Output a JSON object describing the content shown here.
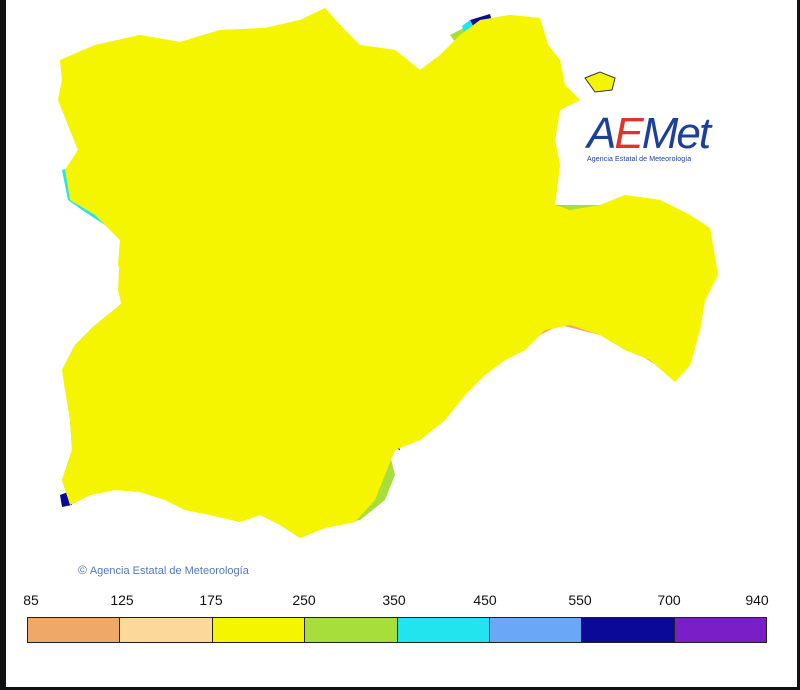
{
  "map": {
    "logo": {
      "name_part_a": "A",
      "name_part_b": "E",
      "name_part_c": "Met",
      "subtitle": "Agencia Estatal de Meteorología"
    },
    "copyright": {
      "symbol": "©",
      "text": "Agencia Estatal de Meteorología"
    },
    "colors": {
      "c85_125": "#f0a868",
      "c125_175": "#fad99a",
      "c175_250": "#f5f500",
      "c250_350": "#a8de3c",
      "c350_450": "#22e4ee",
      "c450_550": "#6aa8f5",
      "c550_700": "#0a0a96",
      "c700_940": "#7a1ec8",
      "border": "#333333"
    }
  },
  "legend": {
    "labels": [
      "85",
      "125",
      "175",
      "250",
      "350",
      "450",
      "550",
      "700",
      "940"
    ],
    "colors": [
      "#f0a868",
      "#fad99a",
      "#f5f500",
      "#a8de3c",
      "#22e4ee",
      "#6aa8f5",
      "#0a0a96",
      "#7a1ec8"
    ]
  }
}
